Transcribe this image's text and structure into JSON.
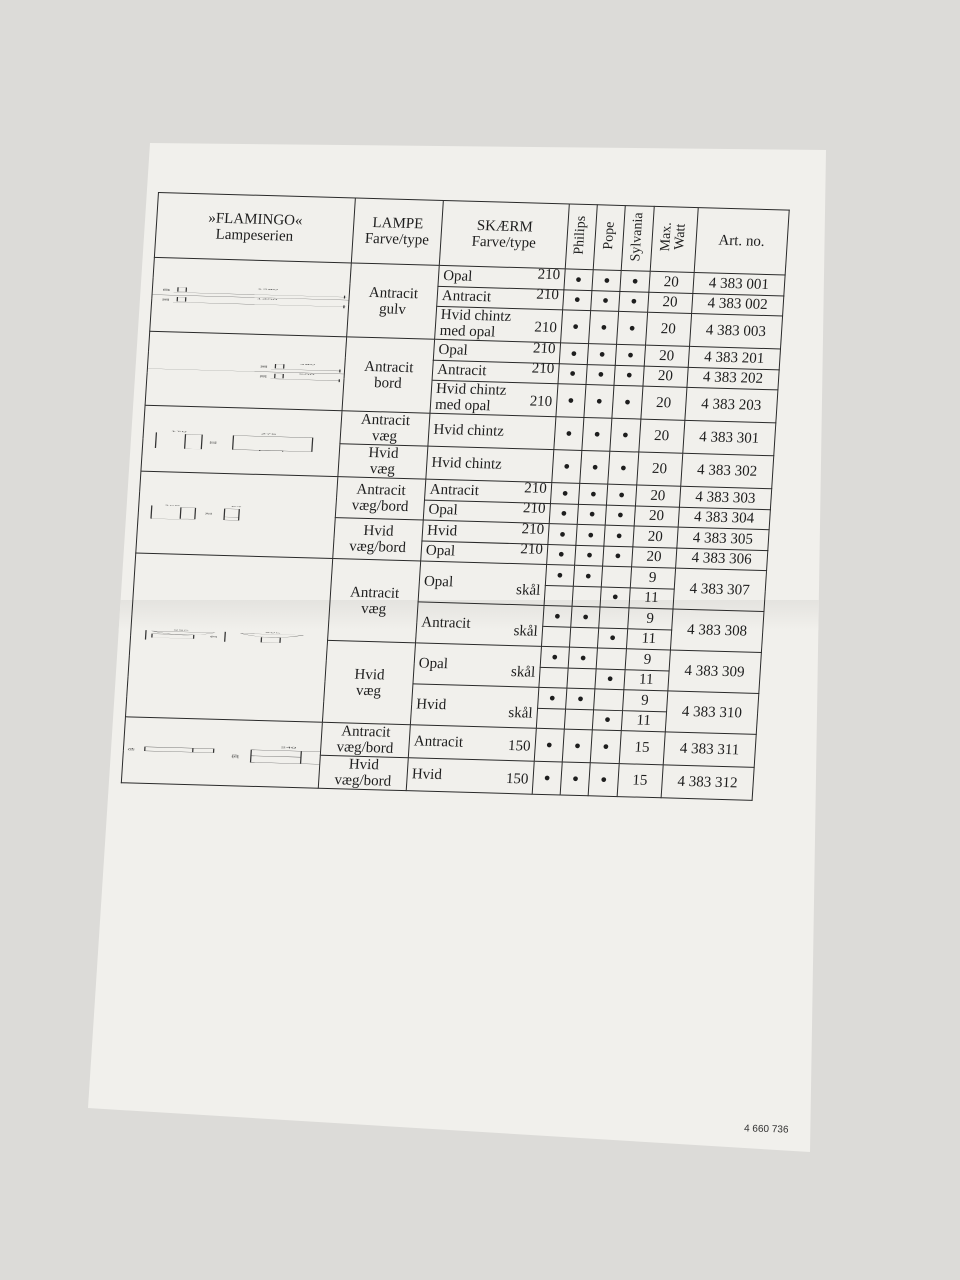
{
  "header": {
    "series_title": "»FLAMINGO«",
    "series_subtitle": "Lampeserien",
    "lamp": "LAMPE",
    "lamp_sub": "Farve/type",
    "screen": "SKÆRM",
    "screen_sub": "Farve/type",
    "philips": "Philips",
    "pope": "Pope",
    "sylvania": "Sylvania",
    "max_watt": "Max.\nWatt",
    "art_no": "Art. no."
  },
  "groups": [
    {
      "drawing": "floor",
      "dims": [
        "1280",
        "380",
        "1300",
        "380"
      ],
      "lamps": [
        {
          "type": "Antracit\ngulv",
          "rows": [
            {
              "screen": "Opal",
              "size": "210",
              "dots": [
                true,
                true,
                true
              ],
              "watt": "20",
              "art": "4 383 001"
            },
            {
              "screen": "Antracit",
              "size": "210",
              "dots": [
                true,
                true,
                true
              ],
              "watt": "20",
              "art": "4 383 002"
            },
            {
              "screen": "Hvid chintz\nmed opal",
              "size": "210",
              "dots": [
                true,
                true,
                true
              ],
              "watt": "20",
              "art": "4 383 003",
              "tall": true
            }
          ]
        }
      ]
    },
    {
      "drawing": "table",
      "dims": [
        "480",
        "360",
        "500",
        "380"
      ],
      "lamps": [
        {
          "type": "Antracit\nbord",
          "rows": [
            {
              "screen": "Opal",
              "size": "210",
              "dots": [
                true,
                true,
                true
              ],
              "watt": "20",
              "art": "4 383 201"
            },
            {
              "screen": "Antracit",
              "size": "210",
              "dots": [
                true,
                true,
                true
              ],
              "watt": "20",
              "art": "4 383 202"
            },
            {
              "screen": "Hvid chintz\nmed opal",
              "size": "210",
              "dots": [
                true,
                true,
                true
              ],
              "watt": "20",
              "art": "4 383 203",
              "tall": true
            }
          ]
        }
      ]
    },
    {
      "drawing": "wallbox",
      "dims": [
        "170",
        "275",
        "320"
      ],
      "lamps": [
        {
          "type": "Antracit\nvæg",
          "rows": [
            {
              "screen": "Hvid chintz",
              "size": "",
              "dots": [
                true,
                true,
                true
              ],
              "watt": "20",
              "art": "4 383 301",
              "tall": true
            }
          ]
        },
        {
          "type": "Hvid\nvæg",
          "rows": [
            {
              "screen": "Hvid chintz",
              "size": "",
              "dots": [
                true,
                true,
                true
              ],
              "watt": "20",
              "art": "4 383 302",
              "tall": true
            }
          ]
        }
      ]
    },
    {
      "drawing": "column",
      "dims": [
        "150",
        "64",
        "300"
      ],
      "lamps": [
        {
          "type": "Antracit\nvæg/bord",
          "rows": [
            {
              "screen": "Antracit",
              "size": "210",
              "dots": [
                true,
                true,
                true
              ],
              "watt": "20",
              "art": "4 383 303"
            },
            {
              "screen": "Opal",
              "size": "210",
              "dots": [
                true,
                true,
                true
              ],
              "watt": "20",
              "art": "4 383 304"
            }
          ]
        },
        {
          "type": "Hvid\nvæg/bord",
          "rows": [
            {
              "screen": "Hvid",
              "size": "210",
              "dots": [
                true,
                true,
                true
              ],
              "watt": "20",
              "art": "4 383 305"
            },
            {
              "screen": "Opal",
              "size": "210",
              "dots": [
                true,
                true,
                true
              ],
              "watt": "20",
              "art": "4 383 306"
            }
          ]
        }
      ]
    },
    {
      "drawing": "bowl",
      "dims": [
        "225",
        "205",
        "190"
      ],
      "lamps": [
        {
          "type": "Antracit\nvæg",
          "rows": [
            {
              "screen": "Opal",
              "size": "skål",
              "split": [
                {
                  "dots": [
                    true,
                    true,
                    false
                  ],
                  "watt": "9"
                },
                {
                  "dots": [
                    false,
                    false,
                    true
                  ],
                  "watt": "11"
                }
              ],
              "art": "4 383 307"
            },
            {
              "screen": "Antracit",
              "size": "skål",
              "split": [
                {
                  "dots": [
                    true,
                    true,
                    false
                  ],
                  "watt": "9"
                },
                {
                  "dots": [
                    false,
                    false,
                    true
                  ],
                  "watt": "11"
                }
              ],
              "art": "4 383 308"
            }
          ]
        },
        {
          "type": "Hvid\nvæg",
          "rows": [
            {
              "screen": "Opal",
              "size": "skål",
              "split": [
                {
                  "dots": [
                    true,
                    true,
                    false
                  ],
                  "watt": "9"
                },
                {
                  "dots": [
                    false,
                    false,
                    true
                  ],
                  "watt": "11"
                }
              ],
              "art": "4 383 309"
            },
            {
              "screen": "Hvid",
              "size": "skål",
              "split": [
                {
                  "dots": [
                    true,
                    true,
                    false
                  ],
                  "watt": "9"
                },
                {
                  "dots": [
                    false,
                    false,
                    true
                  ],
                  "watt": "11"
                }
              ],
              "art": "4 383 310"
            }
          ]
        }
      ]
    },
    {
      "drawing": "flat",
      "dims": [
        "64",
        "240",
        "150"
      ],
      "lamps": [
        {
          "type": "Antracit\nvæg/bord",
          "rows": [
            {
              "screen": "Antracit",
              "size": "150",
              "dots": [
                true,
                true,
                true
              ],
              "watt": "15",
              "art": "4 383 311"
            }
          ]
        },
        {
          "type": "Hvid\nvæg/bord",
          "rows": [
            {
              "screen": "Hvid",
              "size": "150",
              "dots": [
                true,
                true,
                true
              ],
              "watt": "15",
              "art": "4 383 312"
            }
          ]
        }
      ]
    }
  ],
  "icons": {
    "dot": "filled-circle-icon"
  },
  "footer_code": "4 660 736"
}
